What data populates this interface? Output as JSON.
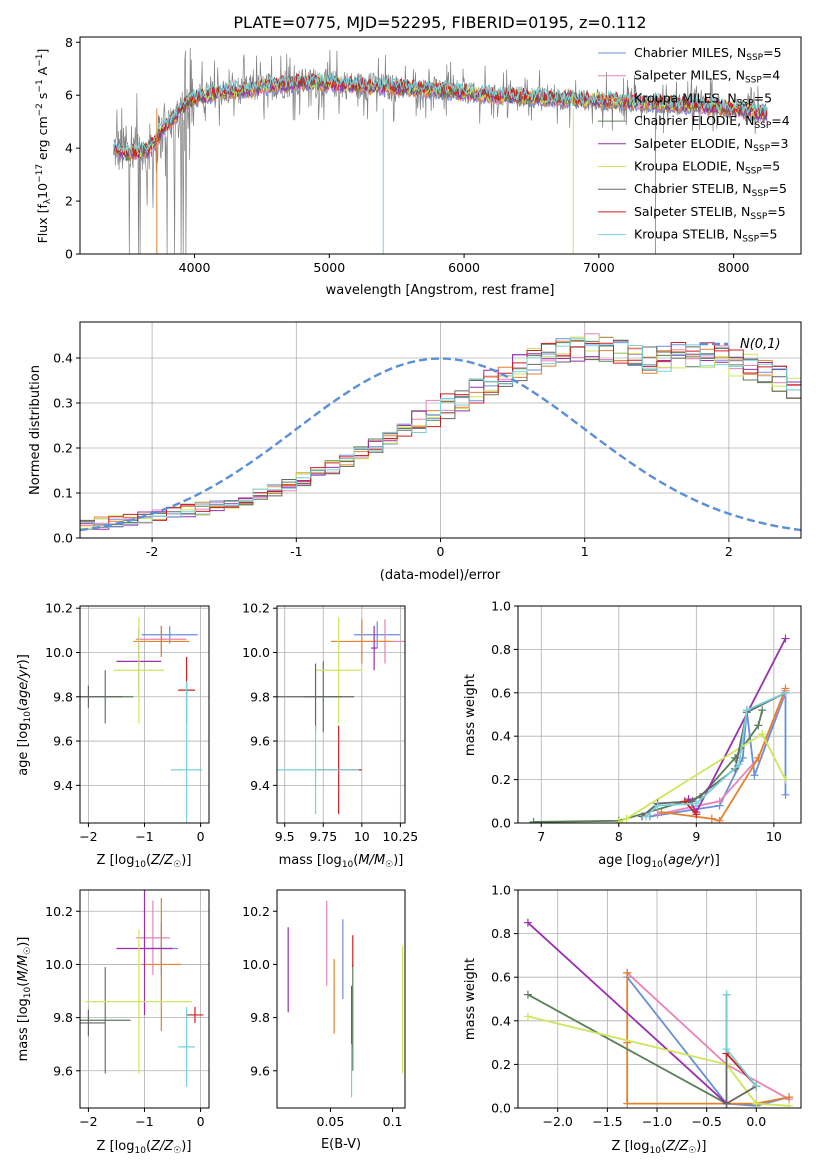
{
  "figure_title": "PLATE=0775, MJD=52295, FIBERID=0195, z=0.112",
  "colors": {
    "Chabrier MILES": "#6a8fd8",
    "Salpeter MILES": "#e882b8",
    "Kroupa MILES": "#e2812e",
    "Chabrier ELODIE": "#5a7f5a",
    "Salpeter ELODIE": "#9b2fae",
    "Kroupa ELODIE": "#cfe65a",
    "Chabrier STELIB": "#666666",
    "Salpeter STELIB": "#cc1f1f",
    "Kroupa STELIB": "#78d0d8",
    "data": "#808080",
    "gaussian": "#5b8fd8"
  },
  "chart_data": [
    {
      "id": "spectrum",
      "type": "line",
      "ylabel": "Flux [f_λ 10^-17 erg cm^-2 s^-1 A^-1]",
      "xlabel": "wavelength [Angstrom, rest frame]",
      "xlim": [
        3150,
        8500
      ],
      "ylim": [
        0,
        8.2
      ],
      "xticks": [
        4000,
        5000,
        6000,
        7000,
        8000
      ],
      "yticks": [
        0,
        2,
        4,
        6,
        8
      ],
      "grid": false,
      "legend_position": "right",
      "legend": [
        {
          "name": "Chabrier MILES",
          "nssp": "5"
        },
        {
          "name": "Salpeter MILES",
          "nssp": "4"
        },
        {
          "name": "Kroupa MILES",
          "nssp": "5"
        },
        {
          "name": "Chabrier ELODIE",
          "nssp": "4"
        },
        {
          "name": "Salpeter ELODIE",
          "nssp": "3"
        },
        {
          "name": "Kroupa ELODIE",
          "nssp": "5"
        },
        {
          "name": "Chabrier STELIB",
          "nssp": "5"
        },
        {
          "name": "Salpeter STELIB",
          "nssp": "5"
        },
        {
          "name": "Kroupa STELIB",
          "nssp": "5"
        }
      ],
      "data_continuum": [
        [
          3400,
          4.0
        ],
        [
          3500,
          3.8
        ],
        [
          3650,
          3.9
        ],
        [
          3800,
          4.8
        ],
        [
          3900,
          5.4
        ],
        [
          4000,
          5.9
        ],
        [
          4200,
          6.1
        ],
        [
          4500,
          6.3
        ],
        [
          4800,
          6.5
        ],
        [
          5100,
          6.4
        ],
        [
          5400,
          6.3
        ],
        [
          5800,
          6.2
        ],
        [
          6200,
          6.0
        ],
        [
          6600,
          5.9
        ],
        [
          7000,
          5.8
        ],
        [
          7400,
          5.7
        ],
        [
          7800,
          5.6
        ],
        [
          8100,
          5.4
        ],
        [
          8250,
          5.3
        ]
      ],
      "model_continuum": [
        [
          3400,
          4.0
        ],
        [
          3500,
          3.8
        ],
        [
          3650,
          3.9
        ],
        [
          3800,
          4.9
        ],
        [
          3900,
          5.5
        ],
        [
          4000,
          5.9
        ],
        [
          4200,
          6.1
        ],
        [
          4500,
          6.3
        ],
        [
          4800,
          6.5
        ],
        [
          5100,
          6.4
        ],
        [
          5400,
          6.3
        ],
        [
          5800,
          6.2
        ],
        [
          6200,
          6.0
        ],
        [
          6600,
          5.9
        ],
        [
          7000,
          5.8
        ],
        [
          7400,
          5.7
        ],
        [
          7800,
          5.6
        ],
        [
          8100,
          5.4
        ],
        [
          8250,
          5.3
        ]
      ]
    },
    {
      "id": "residuals",
      "type": "histogram",
      "xlabel": "(data-model)/error",
      "ylabel": "Normed distribution",
      "xlim": [
        -2.5,
        2.5
      ],
      "ylim": [
        0,
        0.48
      ],
      "xticks": [
        -2,
        -1,
        0,
        1,
        2
      ],
      "yticks": [
        0.0,
        0.1,
        0.2,
        0.3,
        0.4
      ],
      "grid": true,
      "legend_position": "top-right",
      "gaussian_label": "N(0,1)",
      "bin_width": 0.1,
      "bin_start": -2.5,
      "base_heights": [
        0.03,
        0.032,
        0.036,
        0.04,
        0.045,
        0.05,
        0.055,
        0.06,
        0.065,
        0.072,
        0.08,
        0.088,
        0.097,
        0.107,
        0.118,
        0.13,
        0.143,
        0.157,
        0.172,
        0.188,
        0.205,
        0.222,
        0.24,
        0.258,
        0.276,
        0.294,
        0.312,
        0.33,
        0.347,
        0.363,
        0.378,
        0.392,
        0.404,
        0.414,
        0.421,
        0.425,
        0.42,
        0.41,
        0.405,
        0.395,
        0.4,
        0.405,
        0.41,
        0.405,
        0.398,
        0.39,
        0.38,
        0.368,
        0.355,
        0.34,
        0.325,
        0.309,
        0.292,
        0.275,
        0.257,
        0.24,
        0.222,
        0.205,
        0.188,
        0.172,
        0.157,
        0.143,
        0.13,
        0.118,
        0.107,
        0.097,
        0.088,
        0.08,
        0.072,
        0.065,
        0.058,
        0.052,
        0.047,
        0.042,
        0.038,
        0.034,
        0.031,
        0.028,
        0.026,
        0.024
      ]
    },
    {
      "id": "age-vs-Z",
      "type": "scatter",
      "xlabel": "Z [log10(Z/Z☉)]",
      "ylabel": "age [log10(age/yr)]",
      "xlim": [
        -2.15,
        0.15
      ],
      "ylim": [
        9.23,
        10.21
      ],
      "xticks": [
        -2,
        -1,
        0
      ],
      "yticks": [
        9.4,
        9.6,
        9.8,
        10.0,
        10.2
      ],
      "grid": true,
      "points": [
        {
          "model": "Chabrier MILES",
          "x": -0.55,
          "y": 10.08,
          "xerr": 0.5,
          "yerr": 0.04
        },
        {
          "model": "Salpeter MILES",
          "x": -0.7,
          "y": 10.06,
          "xerr": 0.45,
          "yerr": 0.06
        },
        {
          "model": "Kroupa MILES",
          "x": -0.7,
          "y": 10.05,
          "xerr": 0.5,
          "yerr": 0.07
        },
        {
          "model": "Chabrier ELODIE",
          "x": -1.7,
          "y": 9.8,
          "xerr": 0.5,
          "yerr": 0.12
        },
        {
          "model": "Salpeter ELODIE",
          "x": -1.1,
          "y": 9.96,
          "xerr": 0.4,
          "yerr": 0.15
        },
        {
          "model": "Kroupa ELODIE",
          "x": -1.1,
          "y": 9.92,
          "xerr": 0.45,
          "yerr": 0.24
        },
        {
          "model": "Chabrier STELIB",
          "x": -2.0,
          "y": 9.8,
          "xerr": 0.6,
          "yerr": 0.05
        },
        {
          "model": "Salpeter STELIB",
          "x": -0.25,
          "y": 9.83,
          "xerr": 0.15,
          "yerr": 0.15
        },
        {
          "model": "Kroupa STELIB",
          "x": -0.25,
          "y": 9.47,
          "xerr": 0.28,
          "yerr": 0.4
        }
      ]
    },
    {
      "id": "age-vs-mass",
      "type": "scatter",
      "xlabel": "mass [log10(M/M☉)]",
      "ylabel": "",
      "xlim": [
        9.45,
        10.28
      ],
      "ylim": [
        9.23,
        10.21
      ],
      "xticks": [
        9.5,
        9.75,
        10.0,
        10.25
      ],
      "yticks": [
        9.4,
        9.6,
        9.8,
        10.0,
        10.2
      ],
      "grid": true,
      "points": [
        {
          "model": "Chabrier MILES",
          "x": 10.1,
          "y": 10.08,
          "xerr": 0.15,
          "yerr": 0.06
        },
        {
          "model": "Salpeter MILES",
          "x": 10.15,
          "y": 10.05,
          "xerr": 0.2,
          "yerr": 0.1
        },
        {
          "model": "Kroupa MILES",
          "x": 10.0,
          "y": 10.05,
          "xerr": 0.2,
          "yerr": 0.1
        },
        {
          "model": "Chabrier ELODIE",
          "x": 9.75,
          "y": 9.8,
          "xerr": 0.12,
          "yerr": 0.16
        },
        {
          "model": "Salpeter ELODIE",
          "x": 10.08,
          "y": 10.02,
          "xerr": 0.02,
          "yerr": 0.1
        },
        {
          "model": "Kroupa ELODIE",
          "x": 9.85,
          "y": 9.92,
          "xerr": 0.15,
          "yerr": 0.24
        },
        {
          "model": "Chabrier STELIB",
          "x": 9.7,
          "y": 9.8,
          "xerr": 0.25,
          "yerr": 0.15
        },
        {
          "model": "Salpeter STELIB",
          "x": 9.85,
          "y": 9.47,
          "xerr": 0.15,
          "yerr": 0.2
        },
        {
          "model": "Kroupa STELIB",
          "x": 9.7,
          "y": 9.47,
          "xerr": 0.28,
          "yerr": 0.2
        }
      ]
    },
    {
      "id": "weights-vs-age",
      "type": "line",
      "xlabel": "age [log10(age/yr)]",
      "ylabel": "mass weight",
      "xlim": [
        6.7,
        10.35
      ],
      "ylim": [
        0,
        1.0
      ],
      "xticks": [
        7,
        8,
        9,
        10
      ],
      "yticks": [
        0.0,
        0.2,
        0.4,
        0.6,
        0.8,
        1.0
      ],
      "grid": true,
      "series": [
        {
          "model": "Chabrier MILES",
          "x": [
            8.4,
            9.3,
            9.6,
            9.65,
            9.75,
            10.15,
            10.15
          ],
          "y": [
            0.03,
            0.08,
            0.3,
            0.52,
            0.22,
            0.6,
            0.13
          ]
        },
        {
          "model": "Salpeter MILES",
          "x": [
            8.5,
            9.3,
            9.8,
            10.15
          ],
          "y": [
            0.04,
            0.1,
            0.3,
            0.61
          ]
        },
        {
          "model": "Kroupa MILES",
          "x": [
            8.55,
            9.2,
            9.3,
            9.8,
            10.15
          ],
          "y": [
            0.05,
            0.02,
            0.01,
            0.3,
            0.62
          ]
        },
        {
          "model": "Chabrier ELODIE",
          "x": [
            6.9,
            8.0,
            9.05,
            9.5,
            9.8,
            9.85
          ],
          "y": [
            0.005,
            0.01,
            0.12,
            0.3,
            0.45,
            0.52
          ]
        },
        {
          "model": "Salpeter ELODIE",
          "x": [
            8.9,
            9.0,
            10.15
          ],
          "y": [
            0.11,
            0.05,
            0.85
          ]
        },
        {
          "model": "Kroupa ELODIE",
          "x": [
            8.0,
            8.1,
            9.85,
            10.15
          ],
          "y": [
            0.005,
            0.02,
            0.41,
            0.2
          ]
        },
        {
          "model": "Chabrier STELIB",
          "x": [
            8.3,
            8.5,
            8.95,
            9.5,
            9.65,
            10.15
          ],
          "y": [
            0.03,
            0.09,
            0.1,
            0.25,
            0.51,
            0.6
          ]
        },
        {
          "model": "Salpeter STELIB",
          "x": [
            8.85,
            9.0
          ],
          "y": [
            0.1,
            0.04
          ]
        },
        {
          "model": "Kroupa STELIB",
          "x": [
            8.35,
            8.5,
            9.0,
            9.55,
            9.65,
            10.15
          ],
          "y": [
            0.03,
            0.08,
            0.09,
            0.27,
            0.52,
            0.6
          ]
        }
      ]
    },
    {
      "id": "mass-vs-Z",
      "type": "scatter",
      "xlabel": "Z [log10(Z/Z☉)]",
      "ylabel": "mass [log10(M/M☉)]",
      "xlim": [
        -2.15,
        0.15
      ],
      "ylim": [
        9.46,
        10.28
      ],
      "xticks": [
        -2,
        -1,
        0
      ],
      "yticks": [
        9.6,
        9.8,
        10.0,
        10.2
      ],
      "grid": true,
      "points": [
        {
          "model": "Chabrier MILES",
          "x": -0.7,
          "y": 10.06,
          "xerr": 0.3,
          "yerr": 0.1
        },
        {
          "model": "Salpeter MILES",
          "x": -0.85,
          "y": 10.1,
          "xerr": 0.3,
          "yerr": 0.14
        },
        {
          "model": "Kroupa MILES",
          "x": -0.7,
          "y": 10.0,
          "xerr": 0.35,
          "yerr": 0.25
        },
        {
          "model": "Chabrier ELODIE",
          "x": -1.7,
          "y": 9.79,
          "xerr": 0.45,
          "yerr": 0.2
        },
        {
          "model": "Salpeter ELODIE",
          "x": -1.0,
          "y": 10.06,
          "xerr": 0.5,
          "yerr": 0.25
        },
        {
          "model": "Kroupa ELODIE",
          "x": -1.1,
          "y": 9.86,
          "xerr": 0.95,
          "yerr": 0.27
        },
        {
          "model": "Chabrier STELIB",
          "x": -2.0,
          "y": 9.78,
          "xerr": 0.3,
          "yerr": 0.05
        },
        {
          "model": "Salpeter STELIB",
          "x": -0.1,
          "y": 9.81,
          "xerr": 0.15,
          "yerr": 0.03
        },
        {
          "model": "Kroupa STELIB",
          "x": -0.25,
          "y": 9.69,
          "xerr": 0.15,
          "yerr": 0.15
        }
      ]
    },
    {
      "id": "mass-vs-ebv",
      "type": "scatter",
      "xlabel": "E(B-V)",
      "ylabel": "",
      "xlim": [
        0.007,
        0.11
      ],
      "ylim": [
        9.46,
        10.28
      ],
      "xticks": [
        0.05,
        0.1
      ],
      "yticks": [
        9.6,
        9.8,
        10.0,
        10.2
      ],
      "grid": false,
      "points": [
        {
          "model": "Chabrier MILES",
          "x": 0.06,
          "y": 10.02,
          "yerr": 0.15
        },
        {
          "model": "Salpeter MILES",
          "x": 0.047,
          "y": 10.08,
          "yerr": 0.16
        },
        {
          "model": "Kroupa MILES",
          "x": 0.053,
          "y": 9.88,
          "yerr": 0.14
        },
        {
          "model": "Chabrier ELODIE",
          "x": 0.068,
          "y": 9.8,
          "yerr": 0.2
        },
        {
          "model": "Salpeter ELODIE",
          "x": 0.016,
          "y": 9.98,
          "yerr": 0.16
        },
        {
          "model": "Kroupa ELODIE",
          "x": 0.108,
          "y": 9.83,
          "yerr": 0.24
        },
        {
          "model": "Chabrier STELIB",
          "x": 0.067,
          "y": 9.8,
          "yerr": 0.12
        },
        {
          "model": "Salpeter STELIB",
          "x": 0.068,
          "y": 10.05,
          "yerr": 0.06
        },
        {
          "model": "Kroupa STELIB",
          "x": 0.067,
          "y": 9.6,
          "yerr": 0.1
        }
      ]
    },
    {
      "id": "weights-vs-Z",
      "type": "line",
      "xlabel": "Z [log10(Z/Z☉)]",
      "ylabel": "mass weight",
      "xlim": [
        -2.4,
        0.45
      ],
      "ylim": [
        0,
        1.0
      ],
      "xticks": [
        -2.0,
        -1.5,
        -1.0,
        -0.5,
        0.0
      ],
      "yticks": [
        0.0,
        0.2,
        0.4,
        0.6,
        0.8,
        1.0
      ],
      "grid": true,
      "series": [
        {
          "model": "Chabrier MILES",
          "x": [
            -1.3,
            -0.3,
            0.0,
            0.33
          ],
          "y": [
            0.6,
            0.02,
            0.01,
            0.05
          ]
        },
        {
          "model": "Salpeter MILES",
          "x": [
            -1.3,
            -0.3,
            0.33
          ],
          "y": [
            0.62,
            0.2,
            0.04
          ]
        },
        {
          "model": "Kroupa MILES",
          "x": [
            -1.3,
            -1.3,
            -1.3,
            0.0,
            0.33
          ],
          "y": [
            0.62,
            0.3,
            0.02,
            0.02,
            0.05
          ]
        },
        {
          "model": "Chabrier ELODIE",
          "x": [
            -2.3,
            -0.3
          ],
          "y": [
            0.52,
            0.02
          ]
        },
        {
          "model": "Salpeter ELODIE",
          "x": [
            -2.3,
            -0.3
          ],
          "y": [
            0.85,
            0.02
          ]
        },
        {
          "model": "Kroupa ELODIE",
          "x": [
            -2.3,
            -0.3,
            0.0,
            0.33
          ],
          "y": [
            0.42,
            0.2,
            0.02,
            0.01
          ]
        },
        {
          "model": "Chabrier STELIB",
          "x": [
            -0.3,
            -0.3,
            0.0
          ],
          "y": [
            0.52,
            0.02,
            0.1
          ]
        },
        {
          "model": "Salpeter STELIB",
          "x": [
            -0.3,
            0.0
          ],
          "y": [
            0.25,
            0.1
          ]
        },
        {
          "model": "Kroupa STELIB",
          "x": [
            -0.3,
            -0.3,
            0.0
          ],
          "y": [
            0.52,
            0.27,
            0.1
          ]
        }
      ]
    }
  ]
}
